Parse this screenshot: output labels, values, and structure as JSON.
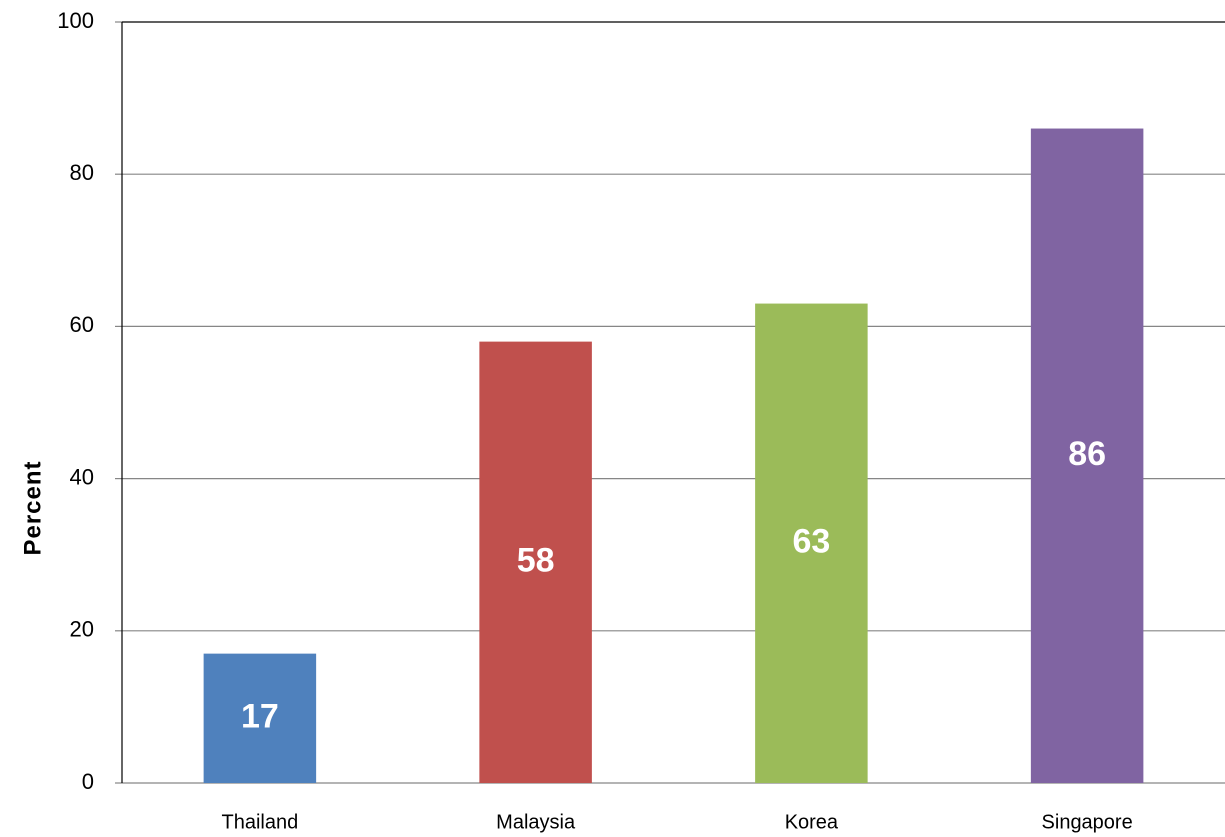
{
  "chart_data": {
    "type": "bar",
    "y_label": "Percent",
    "categories": [
      "Thailand",
      "Malaysia",
      "Korea",
      "Singapore"
    ],
    "values": [
      17,
      58,
      63,
      86
    ],
    "colors": [
      "#4f81bd",
      "#c0504d",
      "#9bbb59",
      "#8064a2"
    ],
    "ylim": [
      0,
      100
    ],
    "yticks": [
      0,
      20,
      40,
      60,
      80,
      100
    ],
    "grid": true
  }
}
